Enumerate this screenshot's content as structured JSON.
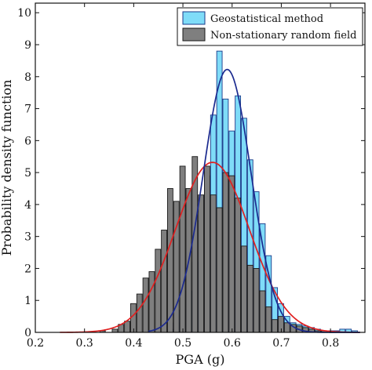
{
  "chart_data": {
    "type": "bar",
    "title": "",
    "xlabel": "PGA (g)",
    "ylabel": "Probability density function",
    "xlim": [
      0.2,
      0.87
    ],
    "ylim": [
      0,
      10.3
    ],
    "xticks": [
      0.2,
      0.3,
      0.4,
      0.5,
      0.6,
      0.7,
      0.8
    ],
    "yticks": [
      0,
      1,
      2,
      3,
      4,
      5,
      6,
      7,
      8,
      9,
      10
    ],
    "grid": false,
    "legend_position": "top-right",
    "bin_width": 0.0125,
    "series": [
      {
        "name": "Geostatistical method",
        "kind": "histogram",
        "color": "#7fdcf8",
        "edge_color": "#1a3a8a",
        "x": [
          0.475,
          0.4875,
          0.5,
          0.5125,
          0.525,
          0.5375,
          0.55,
          0.5625,
          0.575,
          0.5875,
          0.6,
          0.6125,
          0.625,
          0.6375,
          0.65,
          0.6625,
          0.675,
          0.6875,
          0.7,
          0.7125,
          0.725,
          0.7375,
          0.75,
          0.7625,
          0.775,
          0.7875,
          0.8,
          0.8125,
          0.825,
          0.8375,
          0.85
        ],
        "values": [
          0.1,
          0.3,
          0.7,
          1.3,
          2.2,
          3.5,
          4.9,
          6.8,
          8.8,
          7.3,
          6.3,
          7.4,
          6.7,
          5.4,
          4.4,
          3.4,
          2.4,
          1.4,
          0.9,
          0.5,
          0.3,
          0.25,
          0.2,
          0.15,
          0.1,
          0.05,
          0.05,
          0.05,
          0.1,
          0.1,
          0.05
        ]
      },
      {
        "name": "Non-stationary random field",
        "kind": "histogram",
        "color": "#7f7f7f",
        "edge_color": "#1a1a1a",
        "x": [
          0.3375,
          0.3625,
          0.375,
          0.3875,
          0.4,
          0.4125,
          0.425,
          0.4375,
          0.45,
          0.4625,
          0.475,
          0.4875,
          0.5,
          0.5125,
          0.525,
          0.5375,
          0.55,
          0.5625,
          0.575,
          0.5875,
          0.6,
          0.6125,
          0.625,
          0.6375,
          0.65,
          0.6625,
          0.675,
          0.6875,
          0.7,
          0.7125,
          0.725,
          0.7375,
          0.75,
          0.7625,
          0.775,
          0.7875
        ],
        "values": [
          0.05,
          0.1,
          0.25,
          0.35,
          0.9,
          1.2,
          1.7,
          1.9,
          2.6,
          3.2,
          4.5,
          4.1,
          5.2,
          4.5,
          5.5,
          4.3,
          5.2,
          4.3,
          3.9,
          5.0,
          4.9,
          4.2,
          2.7,
          2.1,
          2.0,
          1.3,
          0.8,
          0.4,
          0.5,
          0.3,
          0.25,
          0.2,
          0.15,
          0.1,
          0.05,
          0.05
        ]
      }
    ],
    "fits": [
      {
        "label": "geostatistical-fit",
        "kind": "normal",
        "mean": 0.59,
        "std": 0.0485,
        "color": "#1b2a8f"
      },
      {
        "label": "random-field-fit",
        "kind": "normal",
        "mean": 0.56,
        "std": 0.075,
        "color": "#e02020"
      }
    ]
  }
}
